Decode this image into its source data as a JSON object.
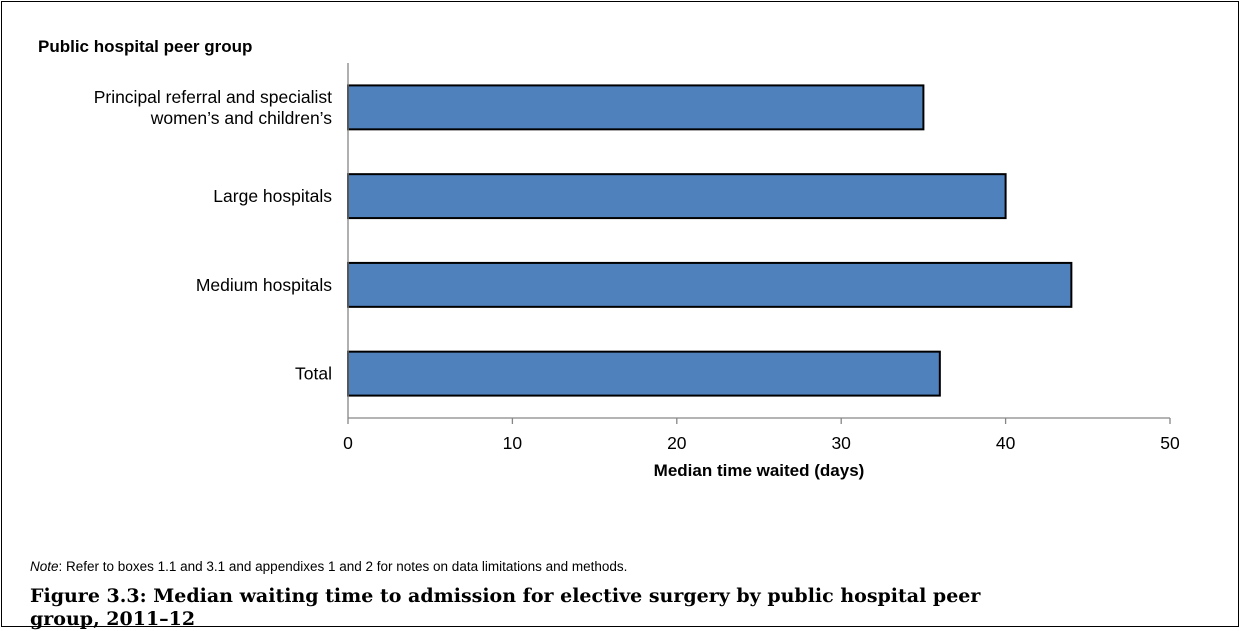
{
  "chart_data": {
    "type": "bar",
    "orientation": "horizontal",
    "category_axis_title": "Public hospital peer group",
    "categories": [
      [
        "Principal referral and specialist",
        "women’s and children’s"
      ],
      [
        "Large hospitals"
      ],
      [
        "Medium hospitals"
      ],
      [
        "Total"
      ]
    ],
    "values": [
      35,
      40,
      44,
      36
    ],
    "xlabel": "Median time waited (days)",
    "xlim": [
      0,
      50
    ],
    "xticks": [
      0,
      10,
      20,
      30,
      40,
      50
    ],
    "bar_color": "#4f81bd",
    "bar_edge_color": "#000000",
    "grid": false
  },
  "note": {
    "label": "Note",
    "text": ": Refer to boxes 1.1 and 3.1 and appendixes 1 and 2 for notes on data limitations and methods."
  },
  "caption": "Figure 3.3: Median waiting time to admission for elective surgery by public hospital peer group, 2011–12"
}
